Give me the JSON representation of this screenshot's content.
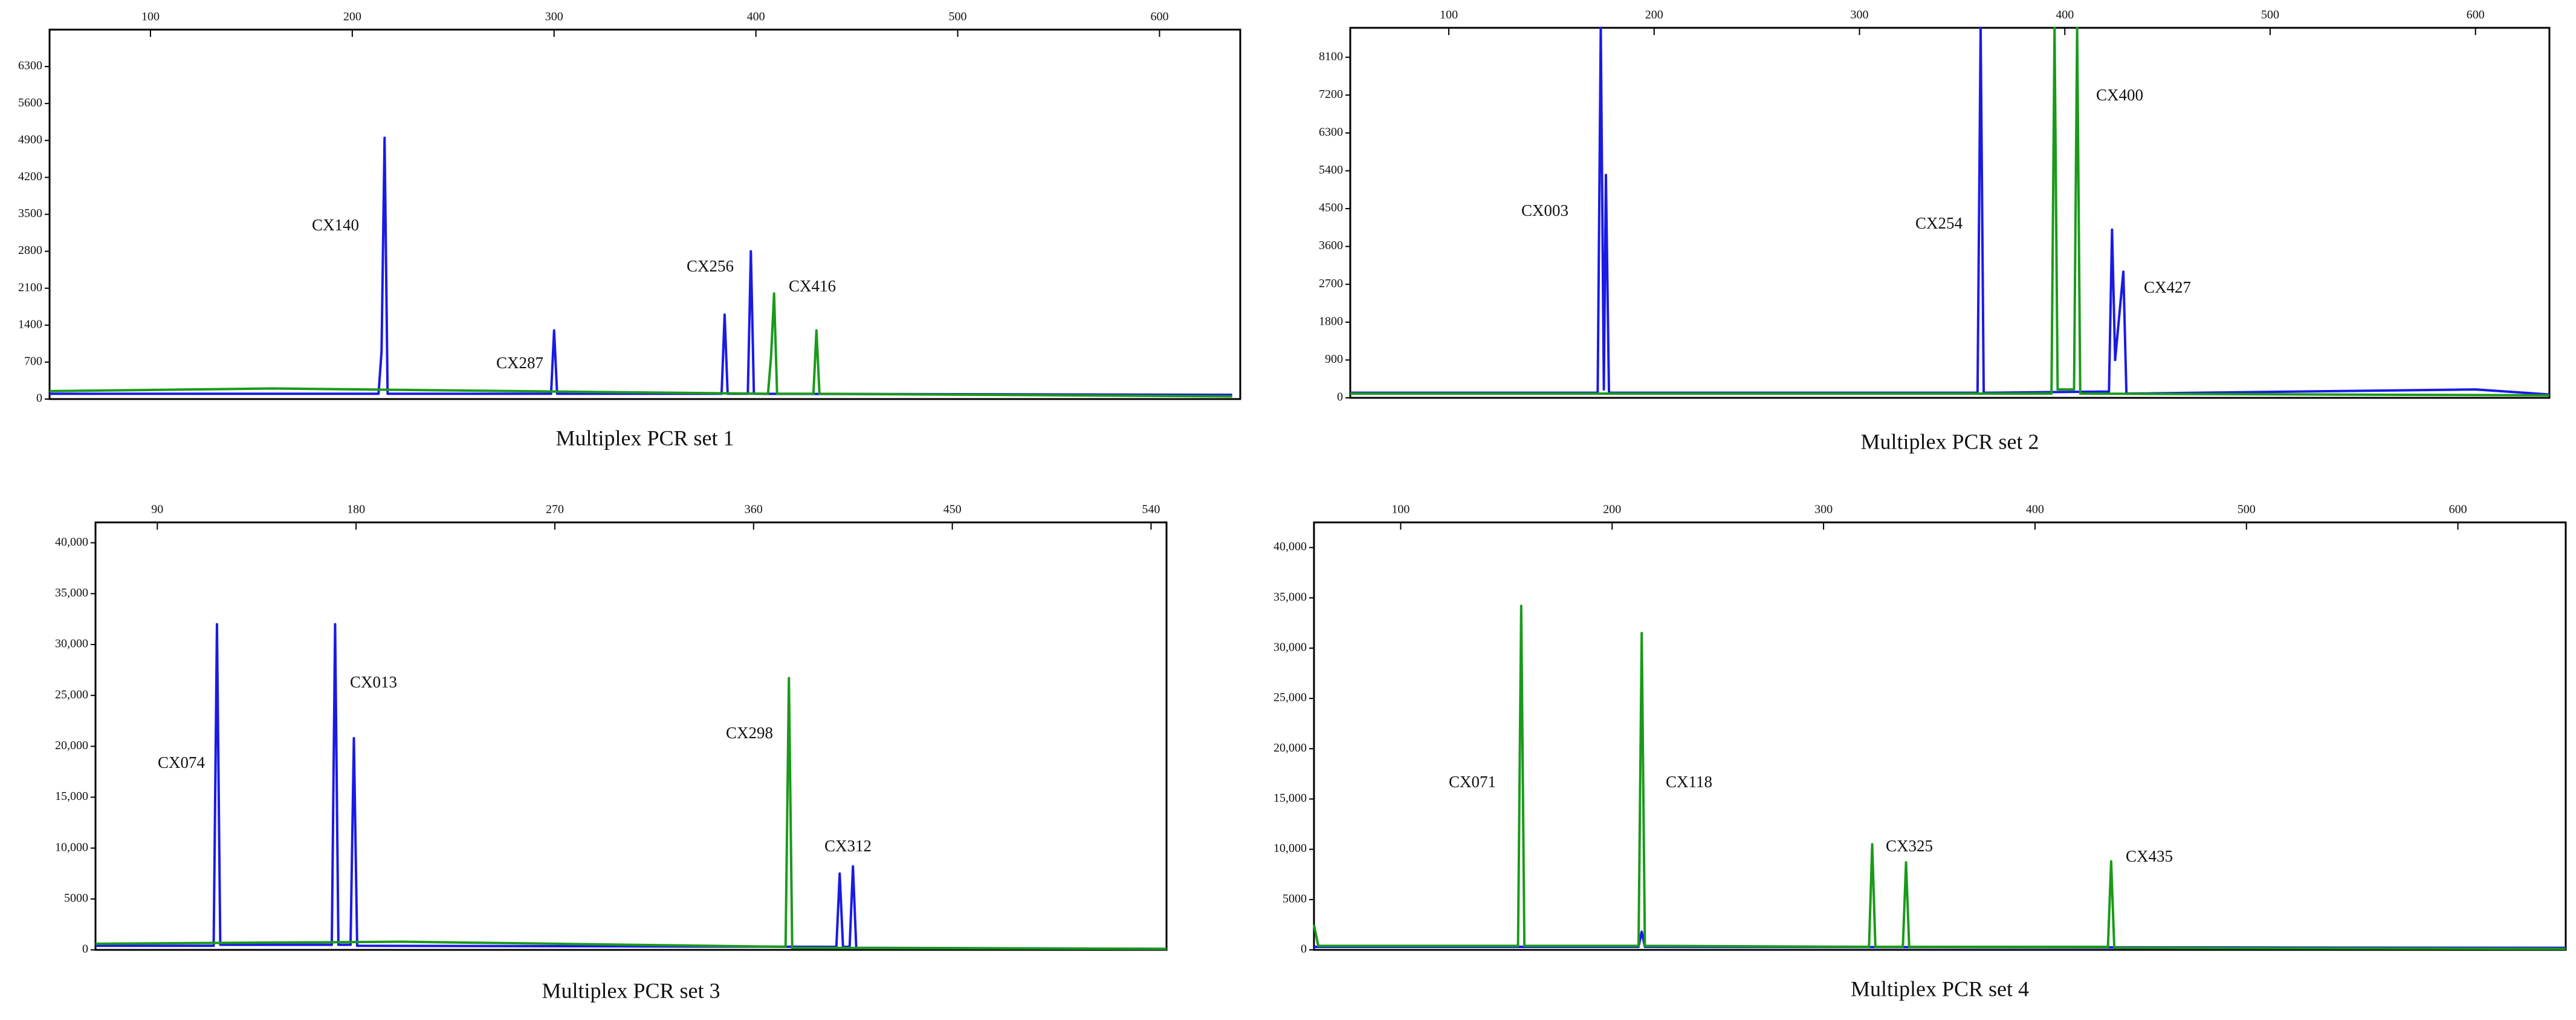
{
  "chart_data": [
    {
      "type": "line",
      "title": "Multiplex PCR set 1",
      "xlim": [
        50,
        640
      ],
      "xticks": [
        100,
        200,
        300,
        400,
        500,
        600
      ],
      "ylim": [
        0,
        7000
      ],
      "yticks": [
        0,
        700,
        1400,
        2100,
        2800,
        3500,
        4200,
        4900,
        5600,
        6300
      ],
      "annotations": [
        "CX140",
        "CX287",
        "CX256",
        "CX416"
      ],
      "series": [
        {
          "color": "#1a1ae6",
          "x": [
            50,
            213,
            214.5,
            216,
            217.5,
            298.5,
            300,
            301.5,
            383,
            384.5,
            386,
            396,
            397.5,
            399,
            636
          ],
          "values": [
            100,
            100,
            900,
            4950,
            100,
            100,
            1300,
            100,
            100,
            1600,
            100,
            100,
            2800,
            100,
            80
          ]
        },
        {
          "color": "#1a9a1a",
          "x": [
            50,
            160,
            406,
            407.5,
            409,
            410.5,
            428.5,
            430,
            431.5,
            636
          ],
          "values": [
            150,
            200,
            100,
            800,
            2000,
            100,
            100,
            1300,
            100,
            50
          ]
        }
      ]
    },
    {
      "type": "line",
      "title": "Multiplex PCR set 2",
      "xlim": [
        52,
        636
      ],
      "xticks": [
        100,
        200,
        300,
        400,
        500,
        600
      ],
      "ylim": [
        0,
        8800
      ],
      "yticks": [
        0,
        900,
        1800,
        2700,
        3600,
        4500,
        5400,
        6300,
        7200,
        8100
      ],
      "annotations": [
        "CX003",
        "CX254",
        "CX400",
        "CX427"
      ],
      "series": [
        {
          "color": "#1a1ae6",
          "x": [
            52,
            172.5,
            174,
            175.5,
            176.5,
            178,
            357.5,
            359,
            360.5,
            421.5,
            423,
            424.5,
            428.5,
            430,
            600,
            636
          ],
          "values": [
            120,
            120,
            8800,
            200,
            5300,
            120,
            120,
            8800,
            120,
            150,
            4000,
            900,
            3000,
            100,
            200,
            80
          ]
        },
        {
          "color": "#1a9a1a",
          "x": [
            52,
            393.5,
            395,
            396.5,
            404.5,
            406,
            407.5,
            636
          ],
          "values": [
            100,
            100,
            8800,
            200,
            200,
            8800,
            100,
            60
          ]
        }
      ]
    },
    {
      "type": "line",
      "title": "Multiplex PCR set 3",
      "xlim": [
        62,
        547
      ],
      "xticks": [
        90,
        180,
        270,
        360,
        450,
        540
      ],
      "ylim": [
        0,
        42000
      ],
      "yticks": [
        0,
        5000,
        {
          "value": 10000,
          "label": "10,000"
        },
        {
          "value": 15000,
          "label": "15,000"
        },
        {
          "value": 20000,
          "label": "20,000"
        },
        {
          "value": 25000,
          "label": "25,000"
        },
        {
          "value": 30000,
          "label": "30,000"
        },
        {
          "value": 35000,
          "label": "35,000"
        },
        {
          "value": 40000,
          "label": "40,000"
        }
      ],
      "annotations": [
        "CX074",
        "CX013",
        "CX298",
        "CX312"
      ],
      "series": [
        {
          "color": "#1a1ae6",
          "x": [
            62,
            115.5,
            117,
            118.5,
            169,
            170.5,
            172,
            177.5,
            179,
            180.5,
            397.5,
            399,
            400.5,
            403.5,
            405,
            406.5,
            547
          ],
          "values": [
            400,
            400,
            32000,
            500,
            500,
            32000,
            500,
            500,
            20800,
            400,
            300,
            7500,
            300,
            300,
            8200,
            200,
            100
          ]
        },
        {
          "color": "#1a9a1a",
          "x": [
            62,
            200,
            374.5,
            376,
            377.5,
            547
          ],
          "values": [
            600,
            800,
            300,
            26700,
            200,
            100
          ]
        }
      ]
    },
    {
      "type": "line",
      "title": "Multiplex PCR set 4",
      "xlim": [
        59,
        651
      ],
      "xticks": [
        100,
        200,
        300,
        400,
        500,
        600
      ],
      "ylim": [
        0,
        42500
      ],
      "yticks": [
        0,
        5000,
        {
          "value": 10000,
          "label": "10,000"
        },
        {
          "value": 15000,
          "label": "15,000"
        },
        {
          "value": 20000,
          "label": "20,000"
        },
        {
          "value": 25000,
          "label": "25,000"
        },
        {
          "value": 30000,
          "label": "30,000"
        },
        {
          "value": 35000,
          "label": "35,000"
        },
        {
          "value": 40000,
          "label": "40,000"
        }
      ],
      "annotations": [
        "CX071",
        "CX118",
        "CX325",
        "CX435"
      ],
      "series": [
        {
          "color": "#1a1ae6",
          "x": [
            59,
            212.5,
            214,
            215.5,
            651
          ],
          "values": [
            300,
            300,
            1800,
            300,
            200
          ]
        },
        {
          "color": "#1a9a1a",
          "x": [
            59,
            61,
            155.5,
            157,
            158.5,
            212.5,
            214,
            215.5,
            321.5,
            323,
            324.5,
            337.5,
            339,
            340.5,
            434.5,
            436,
            437.5,
            651
          ],
          "values": [
            2500,
            400,
            400,
            34200,
            400,
            400,
            31500,
            400,
            300,
            10500,
            300,
            300,
            8700,
            300,
            300,
            8800,
            200,
            100
          ]
        }
      ]
    }
  ]
}
